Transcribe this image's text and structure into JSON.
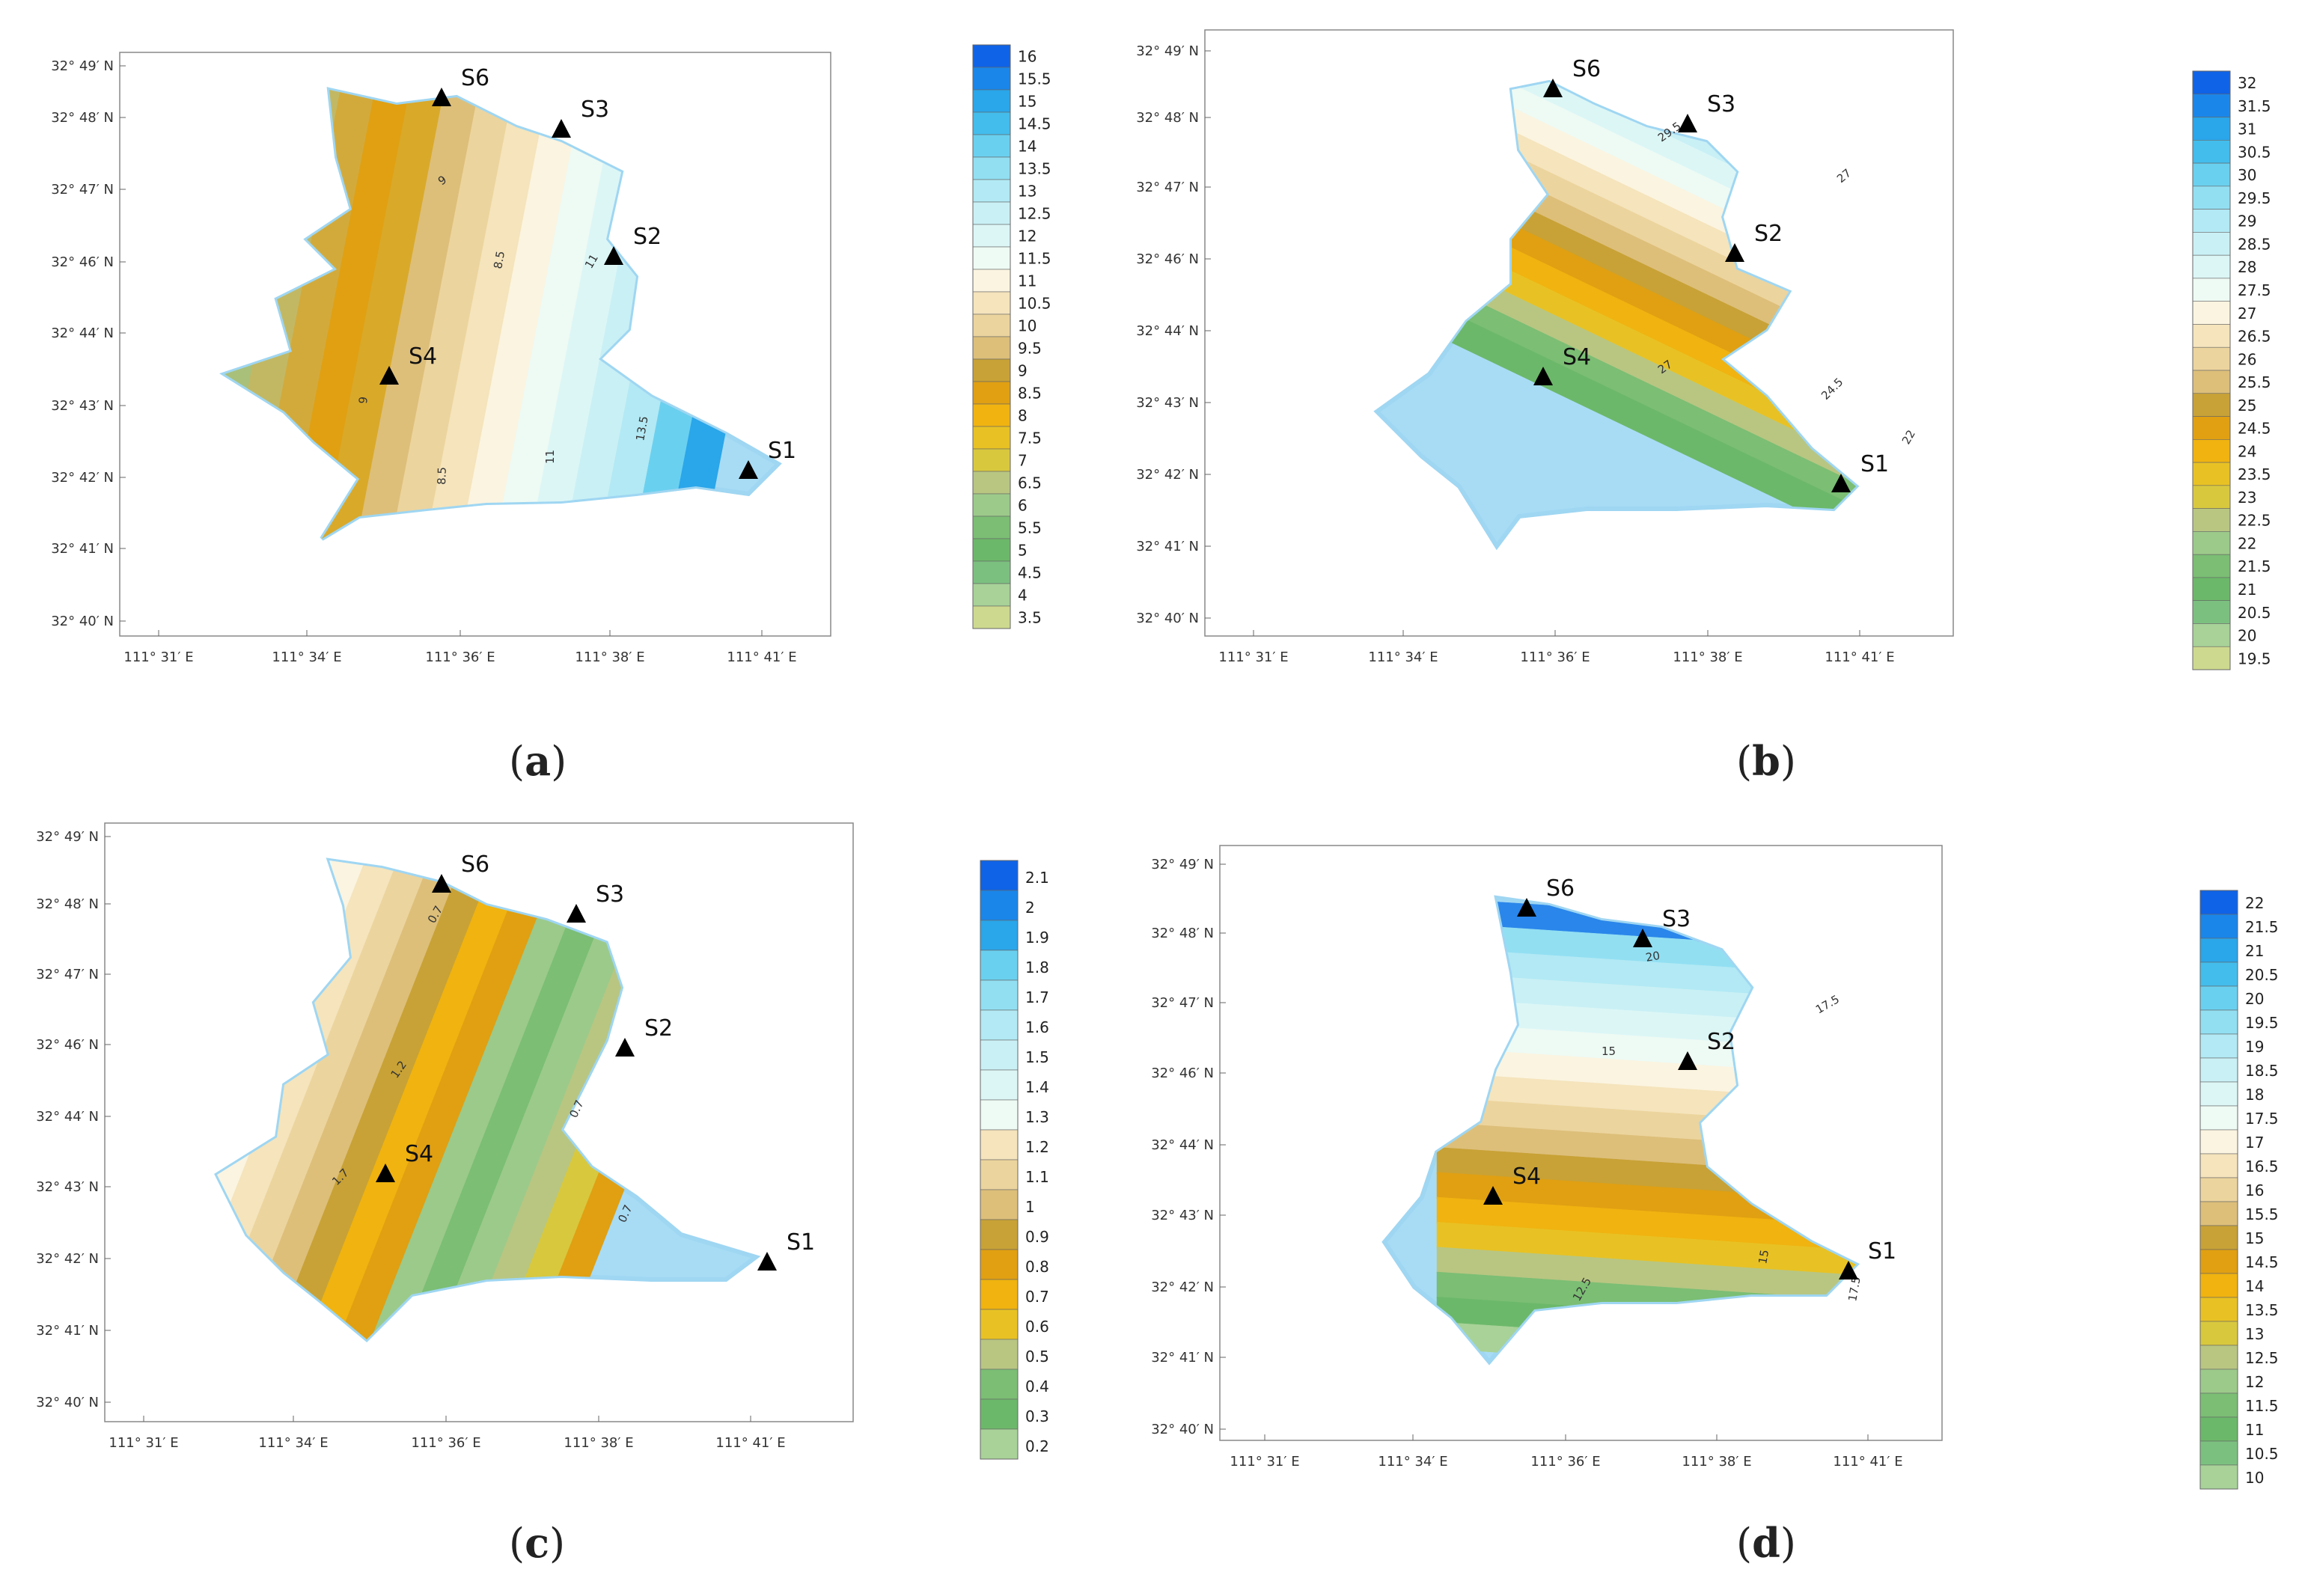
{
  "chart_data": [
    {
      "type": "contour-map",
      "caption_letter": "a",
      "lat_ticks": [
        "32° 49′ N",
        "32° 48′ N",
        "32° 47′ N",
        "32° 46′ N",
        "32° 44′ N",
        "32° 43′ N",
        "32° 42′ N",
        "32° 41′ N",
        "32° 40′ N"
      ],
      "lon_ticks": [
        "111° 31′ E",
        "111° 34′ E",
        "111° 36′ E",
        "111° 38′ E",
        "111° 41′ E"
      ],
      "stations": [
        "S6",
        "S3",
        "S2",
        "S4",
        "S1"
      ],
      "contour_labels": [
        "9",
        "8.5",
        "11",
        "9",
        "8.5",
        "11",
        "13.5"
      ],
      "legend_levels": [
        "16",
        "15.5",
        "15",
        "14.5",
        "14",
        "13.5",
        "13",
        "12.5",
        "12",
        "11.5",
        "11",
        "10.5",
        "10",
        "9.5",
        "9",
        "8.5",
        "8",
        "7.5",
        "7",
        "6.5",
        "6",
        "5.5",
        "5",
        "4.5",
        "4",
        "3.5"
      ],
      "colors": [
        "#0f63e6",
        "#1a86ea",
        "#2aa6ea",
        "#43bdec",
        "#6ad0ef",
        "#92dff2",
        "#b2e9f4",
        "#c9f0f5",
        "#dcf6f6",
        "#eefaf4",
        "#fbf4e0",
        "#f5e4bc",
        "#ecd49e",
        "#ddbf7a",
        "#c8a236",
        "#e0a012",
        "#f0b310",
        "#e8c224",
        "#d8c83e",
        "#b8c682",
        "#9cca8a",
        "#7bbe74",
        "#6cb86a",
        "#7cc080",
        "#a8d298",
        "#cdd98e"
      ]
    },
    {
      "type": "contour-map",
      "caption_letter": "b",
      "lat_ticks": [
        "32° 49′ N",
        "32° 48′ N",
        "32° 47′ N",
        "32° 46′ N",
        "32° 44′ N",
        "32° 43′ N",
        "32° 42′ N",
        "32° 41′ N",
        "32° 40′ N"
      ],
      "lon_ticks": [
        "111° 31′ E",
        "111° 34′ E",
        "111° 36′ E",
        "111° 38′ E",
        "111° 41′ E"
      ],
      "stations": [
        "S6",
        "S3",
        "S2",
        "S4",
        "S1"
      ],
      "contour_labels": [
        "29.5",
        "27",
        "27",
        "24.5",
        "22"
      ],
      "legend_levels": [
        "32",
        "31.5",
        "31",
        "30.5",
        "30",
        "29.5",
        "29",
        "28.5",
        "28",
        "27.5",
        "27",
        "26.5",
        "26",
        "25.5",
        "25",
        "24.5",
        "24",
        "23.5",
        "23",
        "22.5",
        "22",
        "21.5",
        "21",
        "20.5",
        "20",
        "19.5"
      ],
      "colors": [
        "#0f63e6",
        "#1a86ea",
        "#2aa6ea",
        "#43bdec",
        "#6ad0ef",
        "#92dff2",
        "#b2e9f4",
        "#c9f0f5",
        "#dcf6f6",
        "#eefaf4",
        "#fbf4e0",
        "#f5e4bc",
        "#ecd49e",
        "#ddbf7a",
        "#c8a236",
        "#e0a012",
        "#f0b310",
        "#e8c224",
        "#d8c83e",
        "#b8c682",
        "#9cca8a",
        "#7bbe74",
        "#6cb86a",
        "#7cc080",
        "#a8d298",
        "#cdd98e"
      ]
    },
    {
      "type": "contour-map",
      "caption_letter": "c",
      "lat_ticks": [
        "32° 49′ N",
        "32° 48′ N",
        "32° 47′ N",
        "32° 46′ N",
        "32° 44′ N",
        "32° 43′ N",
        "32° 42′ N",
        "32° 41′ N",
        "32° 40′ N"
      ],
      "lon_ticks": [
        "111° 31′ E",
        "111° 34′ E",
        "111° 36′ E",
        "111° 38′ E",
        "111° 41′ E"
      ],
      "stations": [
        "S6",
        "S3",
        "S2",
        "S4",
        "S1"
      ],
      "contour_labels": [
        "0.7",
        "1.2",
        "1.7",
        "0.7",
        "0.7"
      ],
      "legend_levels": [
        "2.1",
        "2",
        "1.9",
        "1.8",
        "1.7",
        "1.6",
        "1.5",
        "1.4",
        "1.3",
        "1.2",
        "1.1",
        "1",
        "0.9",
        "0.8",
        "0.7",
        "0.6",
        "0.5",
        "0.4",
        "0.3",
        "0.2"
      ],
      "colors": [
        "#0f63e6",
        "#1a86ea",
        "#2aa6ea",
        "#6ad0ef",
        "#92dff2",
        "#b2e9f4",
        "#c9f0f5",
        "#dcf6f6",
        "#eefaf4",
        "#f5e4bc",
        "#ecd49e",
        "#ddbf7a",
        "#c8a236",
        "#e0a012",
        "#f0b310",
        "#e8c224",
        "#b8c682",
        "#7bbe74",
        "#6cb86a",
        "#a8d298",
        "#cdd98e"
      ]
    },
    {
      "type": "contour-map",
      "caption_letter": "d",
      "lat_ticks": [
        "32° 49′ N",
        "32° 48′ N",
        "32° 47′ N",
        "32° 46′ N",
        "32° 44′ N",
        "32° 43′ N",
        "32° 42′ N",
        "32° 41′ N",
        "32° 40′ N"
      ],
      "lon_ticks": [
        "111° 31′ E",
        "111° 34′ E",
        "111° 36′ E",
        "111° 38′ E",
        "111° 41′ E"
      ],
      "stations": [
        "S6",
        "S3",
        "S2",
        "S4",
        "S1"
      ],
      "contour_labels": [
        "20",
        "17.5",
        "15",
        "15",
        "12.5",
        "17.5"
      ],
      "legend_levels": [
        "22",
        "21.5",
        "21",
        "20.5",
        "20",
        "19.5",
        "19",
        "18.5",
        "18",
        "17.5",
        "17",
        "16.5",
        "16",
        "15.5",
        "15",
        "14.5",
        "14",
        "13.5",
        "13",
        "12.5",
        "12",
        "11.5",
        "11",
        "10.5",
        "10"
      ],
      "colors": [
        "#0f63e6",
        "#1a86ea",
        "#2aa6ea",
        "#43bdec",
        "#6ad0ef",
        "#92dff2",
        "#b2e9f4",
        "#c9f0f5",
        "#dcf6f6",
        "#eefaf4",
        "#fbf4e0",
        "#f5e4bc",
        "#ecd49e",
        "#ddbf7a",
        "#c8a236",
        "#e0a012",
        "#f0b310",
        "#e8c224",
        "#d8c83e",
        "#b8c682",
        "#9cca8a",
        "#7bbe74",
        "#6cb86a",
        "#7cc080",
        "#a8d298",
        "#cdd98e"
      ]
    }
  ]
}
